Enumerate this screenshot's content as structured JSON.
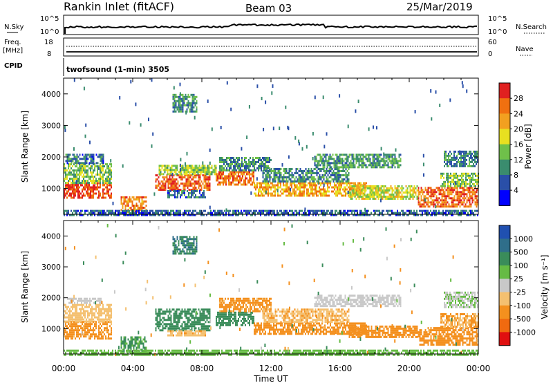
{
  "header": {
    "site": "Rankin Inlet (fitACF)",
    "beam": "Beam 03",
    "date": "25/Mar/2019"
  },
  "strips": {
    "nsky_label": "N.Sky",
    "nsky_ticks": [
      "10^5",
      "10^0"
    ],
    "nsearch_label": "N.Search",
    "nsearch_ticks": [
      "10^5",
      "10^0"
    ],
    "freq_label": "Freq.",
    "freq_unit": "[MHz]",
    "freq_ticks": [
      "18",
      "8"
    ],
    "nave_label": "Nave",
    "nave_ticks": [
      "60",
      "0"
    ],
    "cpid_label": "CPID",
    "cpid_text": "twofsound (1-min) 3505"
  },
  "chart_data": [
    {
      "type": "heatmap",
      "panel": "power",
      "xlabel": "Time UT",
      "ylabel": "Slant Range [km]",
      "xlim": [
        "00:00",
        "24:00"
      ],
      "ylim": [
        180,
        4500
      ],
      "x_ticks": [
        "00:00",
        "04:00",
        "08:00",
        "12:00",
        "16:00",
        "20:00",
        "00:00"
      ],
      "y_ticks": [
        "1000",
        "2000",
        "3000",
        "4000"
      ],
      "colorbar": {
        "label": "Power [dB]",
        "ticks": [
          "4",
          "8",
          "12",
          "16",
          "20",
          "24",
          "28"
        ],
        "range": [
          0,
          32
        ],
        "colors": [
          "#0000ff",
          "#2a4fa8",
          "#3a8c6e",
          "#6fc04a",
          "#e8e020",
          "#f2a020",
          "#f07010",
          "#e02020"
        ]
      },
      "echo_regions": [
        {
          "t0": 0.0,
          "t1": 2.8,
          "r0": 700,
          "r1": 1200,
          "value": 29
        },
        {
          "t0": 0.0,
          "t1": 2.8,
          "r0": 1200,
          "r1": 1800,
          "value": 14
        },
        {
          "t0": 0.1,
          "t1": 2.3,
          "r0": 1800,
          "r1": 2100,
          "value": 8
        },
        {
          "t0": 3.3,
          "t1": 4.8,
          "r0": 250,
          "r1": 750,
          "value": 24
        },
        {
          "t0": 5.3,
          "t1": 8.5,
          "r0": 950,
          "r1": 1450,
          "value": 27
        },
        {
          "t0": 5.5,
          "t1": 8.8,
          "r0": 1450,
          "r1": 1750,
          "value": 15
        },
        {
          "t0": 6.0,
          "t1": 8.2,
          "r0": 750,
          "r1": 950,
          "value": 8
        },
        {
          "t0": 8.8,
          "t1": 11.0,
          "r0": 1100,
          "r1": 1550,
          "value": 25
        },
        {
          "t0": 9.0,
          "t1": 12.0,
          "r0": 1550,
          "r1": 2000,
          "value": 10
        },
        {
          "t0": 11.0,
          "t1": 17.5,
          "r0": 800,
          "r1": 1200,
          "value": 22
        },
        {
          "t0": 11.5,
          "t1": 16.5,
          "r0": 1200,
          "r1": 1650,
          "value": 10
        },
        {
          "t0": 14.5,
          "t1": 19.5,
          "r0": 1700,
          "r1": 2100,
          "value": 11
        },
        {
          "t0": 16.5,
          "t1": 20.5,
          "r0": 700,
          "r1": 1100,
          "value": 17
        },
        {
          "t0": 20.5,
          "t1": 24.0,
          "r0": 450,
          "r1": 1050,
          "value": 26
        },
        {
          "t0": 21.8,
          "t1": 24.0,
          "r0": 1050,
          "r1": 1500,
          "value": 14
        },
        {
          "t0": 22.0,
          "t1": 24.0,
          "r0": 1700,
          "r1": 2200,
          "value": 9
        },
        {
          "t0": 6.3,
          "t1": 7.7,
          "r0": 3450,
          "r1": 4000,
          "value": 11
        },
        {
          "t0": 0.0,
          "t1": 24.0,
          "r0": 180,
          "r1": 320,
          "value": 7
        }
      ]
    },
    {
      "type": "heatmap",
      "panel": "velocity",
      "xlabel": "Time UT",
      "ylabel": "Slant Range [km]",
      "xlim": [
        "00:00",
        "24:00"
      ],
      "ylim": [
        180,
        4500
      ],
      "x_ticks": [
        "00:00",
        "04:00",
        "08:00",
        "12:00",
        "16:00",
        "20:00",
        "00:00"
      ],
      "y_ticks": [
        "1000",
        "2000",
        "3000",
        "4000"
      ],
      "colorbar": {
        "label": "Velocity [m s⁻¹]",
        "ticks": [
          "1000",
          "500",
          "100",
          "25",
          "-25",
          "-100",
          "-500",
          "-1000"
        ],
        "colors": [
          "#2050b0",
          "#2f6e8a",
          "#3a8c5a",
          "#66bb44",
          "#c8c8c8",
          "#f4c070",
          "#f4901e",
          "#f06a10",
          "#e01010"
        ]
      },
      "echo_regions": [
        {
          "t0": 0.0,
          "t1": 2.8,
          "r0": 700,
          "r1": 1250,
          "value": -150
        },
        {
          "t0": 0.0,
          "t1": 2.8,
          "r0": 1250,
          "r1": 1800,
          "value": -60
        },
        {
          "t0": 0.2,
          "t1": 2.2,
          "r0": 1800,
          "r1": 2000,
          "value": 0
        },
        {
          "t0": 3.3,
          "t1": 4.8,
          "r0": 250,
          "r1": 750,
          "value": 120
        },
        {
          "t0": 5.3,
          "t1": 8.5,
          "r0": 950,
          "r1": 1650,
          "value": 300
        },
        {
          "t0": 6.0,
          "t1": 8.2,
          "r0": 750,
          "r1": 950,
          "value": -80
        },
        {
          "t0": 8.8,
          "t1": 11.0,
          "r0": 1100,
          "r1": 1550,
          "value": 250
        },
        {
          "t0": 9.0,
          "t1": 12.0,
          "r0": 1550,
          "r1": 2000,
          "value": -150
        },
        {
          "t0": 11.0,
          "t1": 17.5,
          "r0": 800,
          "r1": 1200,
          "value": -250
        },
        {
          "t0": 11.5,
          "t1": 16.5,
          "r0": 1200,
          "r1": 1650,
          "value": -80
        },
        {
          "t0": 14.5,
          "t1": 19.5,
          "r0": 1700,
          "r1": 2100,
          "value": 0
        },
        {
          "t0": 16.5,
          "t1": 20.5,
          "r0": 700,
          "r1": 1100,
          "value": -200
        },
        {
          "t0": 20.5,
          "t1": 24.0,
          "r0": 450,
          "r1": 1050,
          "value": -300
        },
        {
          "t0": 21.8,
          "t1": 24.0,
          "r0": 1050,
          "r1": 1500,
          "value": -100
        },
        {
          "t0": 22.0,
          "t1": 24.0,
          "r0": 1700,
          "r1": 2200,
          "value": 20
        },
        {
          "t0": 6.3,
          "t1": 7.7,
          "r0": 3450,
          "r1": 4000,
          "value": 450
        },
        {
          "t0": 0.0,
          "t1": 24.0,
          "r0": 180,
          "r1": 320,
          "value": 60
        }
      ]
    }
  ]
}
